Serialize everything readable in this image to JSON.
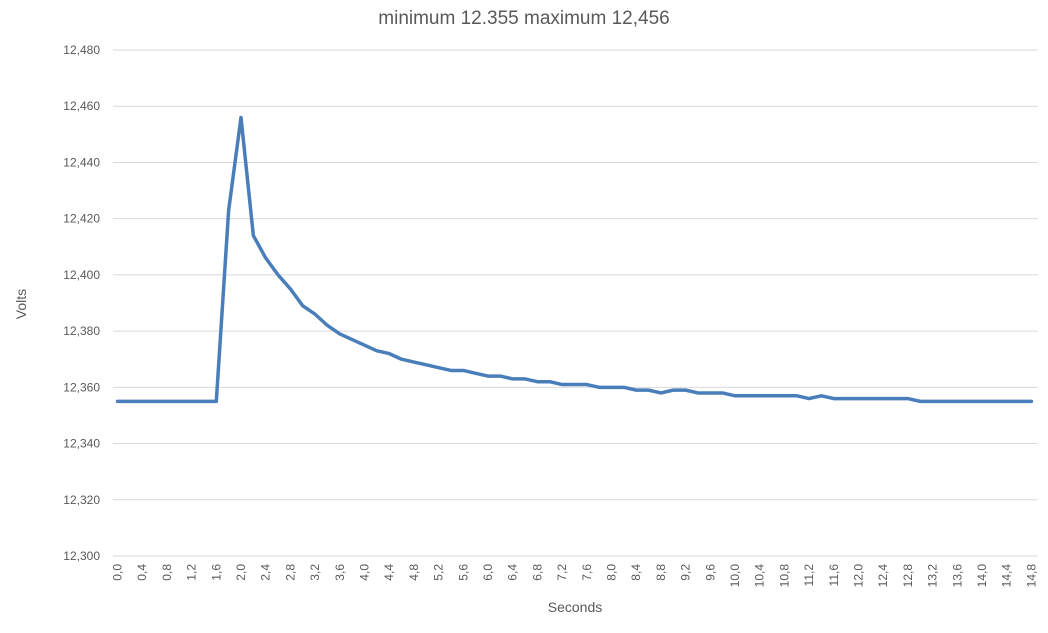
{
  "chart_data": {
    "type": "line",
    "title": "minimum 12.355 maximum 12,456",
    "xlabel": "Seconds",
    "ylabel": "Volts",
    "ylim": [
      12.3,
      12.48
    ],
    "yticks": [
      {
        "value": 12.3,
        "label": "12,300"
      },
      {
        "value": 12.32,
        "label": "12,320"
      },
      {
        "value": 12.34,
        "label": "12,340"
      },
      {
        "value": 12.36,
        "label": "12,360"
      },
      {
        "value": 12.38,
        "label": "12,380"
      },
      {
        "value": 12.4,
        "label": "12,400"
      },
      {
        "value": 12.42,
        "label": "12,420"
      },
      {
        "value": 12.44,
        "label": "12,440"
      },
      {
        "value": 12.46,
        "label": "12,460"
      },
      {
        "value": 12.48,
        "label": "12,480"
      }
    ],
    "x": [
      "0,0",
      "0,2",
      "0,4",
      "0,6",
      "0,8",
      "1,0",
      "1,2",
      "1,4",
      "1,6",
      "1,8",
      "2,0",
      "2,2",
      "2,4",
      "2,6",
      "2,8",
      "3,0",
      "3,2",
      "3,4",
      "3,6",
      "3,8",
      "4,0",
      "4,2",
      "4,4",
      "4,6",
      "4,8",
      "5,0",
      "5,2",
      "5,4",
      "5,6",
      "5,8",
      "6,0",
      "6,2",
      "6,4",
      "6,6",
      "6,8",
      "7,0",
      "7,2",
      "7,4",
      "7,6",
      "7,8",
      "8,0",
      "8,2",
      "8,4",
      "8,6",
      "8,8",
      "9,0",
      "9,2",
      "9,4",
      "9,6",
      "9,8",
      "10,0",
      "10,2",
      "10,4",
      "10,6",
      "10,8",
      "11,0",
      "11,2",
      "11,4",
      "11,6",
      "11,8",
      "12,0",
      "12,2",
      "12,4",
      "12,6",
      "12,8",
      "13,0",
      "13,2",
      "13,4",
      "13,6",
      "13,8",
      "14,0",
      "14,2",
      "14,4",
      "14,6",
      "14,8"
    ],
    "x_tick_labels": [
      "0,0",
      "0,4",
      "0,8",
      "1,2",
      "1,6",
      "2,0",
      "2,4",
      "2,8",
      "3,2",
      "3,6",
      "4,0",
      "4,4",
      "4,8",
      "5,2",
      "5,6",
      "6,0",
      "6,4",
      "6,8",
      "7,2",
      "7,6",
      "8,0",
      "8,4",
      "8,8",
      "9,2",
      "9,6",
      "10,0",
      "10,4",
      "10,8",
      "11,2",
      "11,6",
      "12,0",
      "12,4",
      "12,8",
      "13,2",
      "13,6",
      "14,0",
      "14,4",
      "14,8"
    ],
    "series": [
      {
        "values": [
          12.355,
          12.355,
          12.355,
          12.355,
          12.355,
          12.355,
          12.355,
          12.355,
          12.355,
          12.423,
          12.456,
          12.414,
          12.406,
          12.4,
          12.395,
          12.389,
          12.386,
          12.382,
          12.379,
          12.377,
          12.375,
          12.373,
          12.372,
          12.37,
          12.369,
          12.368,
          12.367,
          12.366,
          12.366,
          12.365,
          12.364,
          12.364,
          12.363,
          12.363,
          12.362,
          12.362,
          12.361,
          12.361,
          12.361,
          12.36,
          12.36,
          12.36,
          12.359,
          12.359,
          12.358,
          12.359,
          12.359,
          12.358,
          12.358,
          12.358,
          12.357,
          12.357,
          12.357,
          12.357,
          12.357,
          12.357,
          12.356,
          12.357,
          12.356,
          12.356,
          12.356,
          12.356,
          12.356,
          12.356,
          12.356,
          12.355,
          12.355,
          12.355,
          12.355,
          12.355,
          12.355,
          12.355,
          12.355,
          12.355,
          12.355
        ],
        "color": "#4a7ebb"
      }
    ],
    "grid": true,
    "gridline_color": "#d9d9d9",
    "legend": "none"
  }
}
